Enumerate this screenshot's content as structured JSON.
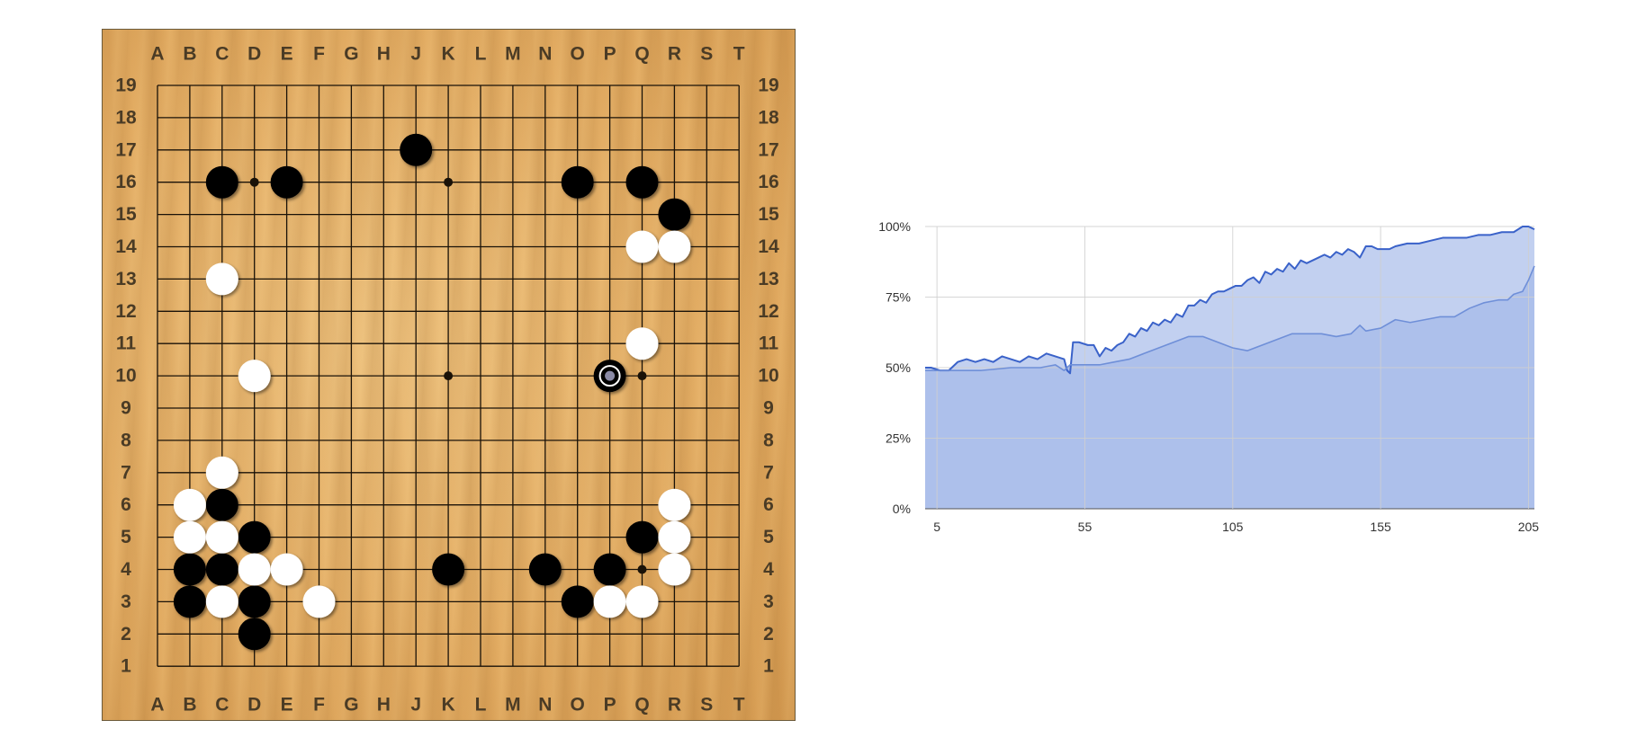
{
  "board": {
    "size": 19,
    "columns": [
      "A",
      "B",
      "C",
      "D",
      "E",
      "F",
      "G",
      "H",
      "J",
      "K",
      "L",
      "M",
      "N",
      "O",
      "P",
      "Q",
      "R",
      "S",
      "T"
    ],
    "rows": [
      "19",
      "18",
      "17",
      "16",
      "15",
      "14",
      "13",
      "12",
      "11",
      "10",
      "9",
      "8",
      "7",
      "6",
      "5",
      "4",
      "3",
      "2",
      "1"
    ],
    "star_points": [
      "D16",
      "K16",
      "D10",
      "K10",
      "Q10",
      "Q4"
    ],
    "black_stones": [
      "J17",
      "C16",
      "E16",
      "O16",
      "Q16",
      "R15",
      "P10",
      "C6",
      "D5",
      "Q5",
      "B4",
      "C4",
      "K4",
      "N4",
      "P4",
      "B3",
      "D3",
      "O3",
      "D2"
    ],
    "white_stones": [
      "Q14",
      "R14",
      "C13",
      "Q11",
      "D10",
      "C7",
      "B6",
      "R6",
      "B5",
      "C5",
      "R5",
      "D4",
      "E4",
      "R4",
      "C3",
      "F3",
      "P3",
      "Q3"
    ],
    "last_move": "P10",
    "colors": {
      "black": "#050505",
      "white": "#ffffff",
      "grid": "#1a1208",
      "last_move_marker": "#8a8aa6"
    }
  },
  "chart_data": {
    "type": "area",
    "title": "",
    "xlabel": "",
    "ylabel": "",
    "xlim": [
      1,
      207
    ],
    "ylim": [
      0,
      100
    ],
    "xticks": [
      "5",
      "55",
      "105",
      "155",
      "205"
    ],
    "yticks": [
      "0%",
      "25%",
      "50%",
      "75%",
      "100%"
    ],
    "grid": true,
    "series": [
      {
        "color": "#3a62c9",
        "fill": "#c2d0f0",
        "x": [
          1,
          3,
          6,
          9,
          12,
          15,
          18,
          21,
          24,
          27,
          30,
          33,
          36,
          39,
          42,
          45,
          48,
          49,
          50,
          51,
          53,
          56,
          58,
          60,
          62,
          64,
          66,
          68,
          70,
          72,
          74,
          76,
          78,
          80,
          82,
          84,
          86,
          88,
          90,
          92,
          94,
          96,
          98,
          100,
          102,
          104,
          106,
          108,
          110,
          112,
          114,
          116,
          118,
          120,
          122,
          124,
          126,
          128,
          130,
          132,
          134,
          136,
          138,
          140,
          142,
          144,
          146,
          148,
          150,
          152,
          154,
          156,
          158,
          160,
          164,
          168,
          172,
          176,
          180,
          184,
          188,
          192,
          196,
          200,
          203,
          205,
          207
        ],
        "y": [
          50,
          50,
          49,
          49,
          52,
          53,
          52,
          53,
          52,
          54,
          53,
          52,
          54,
          53,
          55,
          54,
          53,
          49,
          48,
          59,
          59,
          58,
          58,
          54,
          57,
          56,
          58,
          59,
          62,
          61,
          64,
          63,
          66,
          65,
          67,
          66,
          69,
          68,
          72,
          72,
          74,
          73,
          76,
          77,
          77,
          78,
          79,
          79,
          81,
          82,
          80,
          84,
          83,
          85,
          84,
          87,
          85,
          88,
          87,
          88,
          89,
          90,
          89,
          91,
          90,
          92,
          91,
          89,
          93,
          93,
          92,
          92,
          92,
          93,
          94,
          94,
          95,
          96,
          96,
          96,
          97,
          97,
          98,
          98,
          100,
          100,
          99
        ]
      },
      {
        "color": "#6f8fd8",
        "fill": "#adc0eb",
        "x": [
          1,
          10,
          20,
          30,
          40,
          45,
          48,
          50,
          55,
          60,
          65,
          70,
          75,
          80,
          85,
          90,
          95,
          100,
          105,
          110,
          115,
          120,
          125,
          130,
          135,
          140,
          145,
          148,
          150,
          155,
          160,
          165,
          170,
          175,
          180,
          185,
          190,
          195,
          198,
          200,
          203,
          205,
          207
        ],
        "y": [
          49,
          49,
          49,
          50,
          50,
          51,
          49,
          51,
          51,
          51,
          52,
          53,
          55,
          57,
          59,
          61,
          61,
          59,
          57,
          56,
          58,
          60,
          62,
          62,
          62,
          61,
          62,
          65,
          63,
          64,
          67,
          66,
          67,
          68,
          68,
          71,
          73,
          74,
          74,
          76,
          77,
          81,
          86
        ]
      }
    ]
  }
}
